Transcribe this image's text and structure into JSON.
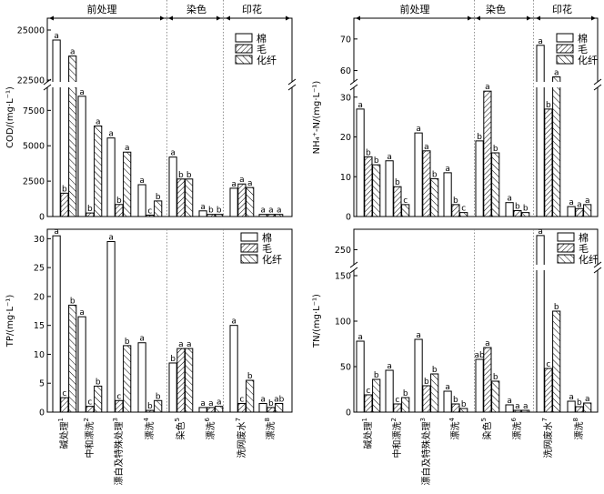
{
  "sections": [
    "前处理",
    "染色",
    "印花"
  ],
  "legend": [
    "棉",
    "毛",
    "化纤"
  ],
  "categories": [
    "碱处理1",
    "中和漂洗2",
    "漂白及特殊处理3",
    "漂洗4",
    "染色5",
    "漂洗6",
    "洗网废水7",
    "漂洗8"
  ],
  "category_labels": [
    {
      "main": "碱处理",
      "sup": "1"
    },
    {
      "main": "中和漂洗",
      "sup": "2"
    },
    {
      "main": "漂白及特殊处理",
      "sup": "3"
    },
    {
      "main": "漂洗",
      "sup": "4"
    },
    {
      "main": "染色",
      "sup": "5"
    },
    {
      "main": "漂洗",
      "sup": "6"
    },
    {
      "main": "洗网废水",
      "sup": "7"
    },
    {
      "main": "漂洗",
      "sup": "8"
    }
  ],
  "chart_data": [
    {
      "id": "cod",
      "type": "bar",
      "ylabel": "COD/(mg·L⁻¹)",
      "break": true,
      "lower_range": [
        0,
        9000
      ],
      "upper_range": [
        22500,
        25500
      ],
      "lower_ticks": [
        0,
        2500,
        5000,
        7500
      ],
      "upper_ticks": [
        22500,
        25000
      ],
      "tick_labels": [
        "0",
        "2500",
        "5000",
        "7500",
        "22500",
        "25000"
      ],
      "categories": [
        "碱处理1",
        "中和漂洗2",
        "漂白及特殊处理3",
        "漂洗4",
        "染色5",
        "漂洗6",
        "洗网废水7",
        "漂洗8"
      ],
      "series": [
        {
          "name": "棉",
          "values": [
            24500,
            8500,
            5550,
            2250,
            4200,
            400,
            2000,
            150
          ],
          "letters": [
            "a",
            "a",
            "a",
            "a",
            "a",
            "a",
            "a",
            "a"
          ]
        },
        {
          "name": "毛",
          "values": [
            1650,
            250,
            850,
            100,
            2650,
            150,
            2300,
            150
          ],
          "letters": [
            "b",
            "b",
            "b",
            "c",
            "b",
            "b",
            "a",
            "a"
          ]
        },
        {
          "name": "化纤",
          "values": [
            23700,
            6400,
            4550,
            1100,
            2650,
            150,
            2050,
            150
          ],
          "letters": [
            "a",
            "a",
            "a",
            "b",
            "b",
            "b",
            "a",
            "a"
          ]
        }
      ]
    },
    {
      "id": "nh4",
      "type": "bar",
      "ylabel": "NH₄⁺-N/(mg·L⁻¹)",
      "break": true,
      "lower_range": [
        0,
        32
      ],
      "upper_range": [
        57,
        76
      ],
      "lower_ticks": [
        0,
        10,
        20,
        30
      ],
      "upper_ticks": [
        60,
        70
      ],
      "tick_labels": [
        "0",
        "10",
        "20",
        "30",
        "60",
        "70"
      ],
      "categories": [
        "碱处理1",
        "中和漂洗2",
        "漂白及特殊处理3",
        "漂洗4",
        "染色5",
        "漂洗6",
        "洗网废水7",
        "漂洗8"
      ],
      "series": [
        {
          "name": "棉",
          "values": [
            27,
            14,
            21,
            11,
            19,
            3.5,
            68,
            2.5
          ],
          "letters": [
            "a",
            "a",
            "a",
            "a",
            "b",
            "a",
            "a",
            "a"
          ]
        },
        {
          "name": "毛",
          "values": [
            15,
            7.5,
            16.5,
            3,
            31.5,
            1.5,
            27,
            2
          ],
          "letters": [
            "b",
            "b",
            "a",
            "b",
            "a",
            "b",
            "b",
            "a"
          ]
        },
        {
          "name": "化纤",
          "values": [
            13,
            3,
            9.5,
            1,
            16,
            1,
            58,
            3
          ],
          "letters": [
            "b",
            "c",
            "b",
            "c",
            "b",
            "b",
            "a",
            "a"
          ]
        }
      ]
    },
    {
      "id": "tp",
      "type": "bar",
      "ylabel": "TP/(mg·L⁻¹)",
      "break": false,
      "ylim": [
        0,
        31
      ],
      "ticks": [
        0,
        5,
        10,
        15,
        20,
        25,
        30
      ],
      "tick_labels": [
        "0",
        "5",
        "10",
        "15",
        "20",
        "25",
        "30"
      ],
      "categories": [
        "碱处理1",
        "中和漂洗2",
        "漂白及特殊处理3",
        "漂洗4",
        "染色5",
        "漂洗6",
        "洗网废水7",
        "漂洗8"
      ],
      "series": [
        {
          "name": "棉",
          "values": [
            30.5,
            16.5,
            29.5,
            12,
            8.5,
            0.8,
            15,
            1.5
          ],
          "letters": [
            "a",
            "a",
            "a",
            "a",
            "b",
            "a",
            "a",
            "a"
          ]
        },
        {
          "name": "毛",
          "values": [
            2.5,
            1,
            2,
            0.3,
            11,
            0.8,
            1.5,
            0.8
          ],
          "letters": [
            "c",
            "c",
            "c",
            "b",
            "a",
            "a",
            "c",
            "b"
          ]
        },
        {
          "name": "化纤",
          "values": [
            18.5,
            4.5,
            11.5,
            2,
            11,
            1,
            5.5,
            1.5
          ],
          "letters": [
            "b",
            "b",
            "b",
            "b",
            "a",
            "a",
            "b",
            "ab"
          ]
        }
      ]
    },
    {
      "id": "tn",
      "type": "bar",
      "ylabel": "TN/(mg·L⁻¹)",
      "break": true,
      "lower_range": [
        0,
        155
      ],
      "upper_range": [
        230,
        275
      ],
      "lower_ticks": [
        0,
        50,
        100,
        150
      ],
      "upper_ticks": [
        250
      ],
      "tick_labels": [
        "0",
        "50",
        "100",
        "150",
        "250"
      ],
      "categories": [
        "碱处理1",
        "中和漂洗2",
        "漂白及特殊处理3",
        "漂洗4",
        "染色5",
        "漂洗6",
        "洗网废水7",
        "漂洗8"
      ],
      "series": [
        {
          "name": "棉",
          "values": [
            78,
            46,
            80,
            23,
            58,
            8,
            270,
            12
          ],
          "letters": [
            "a",
            "a",
            "a",
            "a",
            "ab",
            "a",
            "a",
            "a"
          ]
        },
        {
          "name": "毛",
          "values": [
            19,
            9,
            29,
            9,
            71,
            2,
            48,
            6
          ],
          "letters": [
            "c",
            "c",
            "b",
            "b",
            "a",
            "a",
            "c",
            "b"
          ]
        },
        {
          "name": "化纤",
          "values": [
            36,
            16,
            42,
            4,
            34,
            2,
            111,
            10
          ],
          "letters": [
            "b",
            "b",
            "b",
            "b",
            "b",
            "a",
            "b",
            "a"
          ]
        }
      ]
    }
  ]
}
